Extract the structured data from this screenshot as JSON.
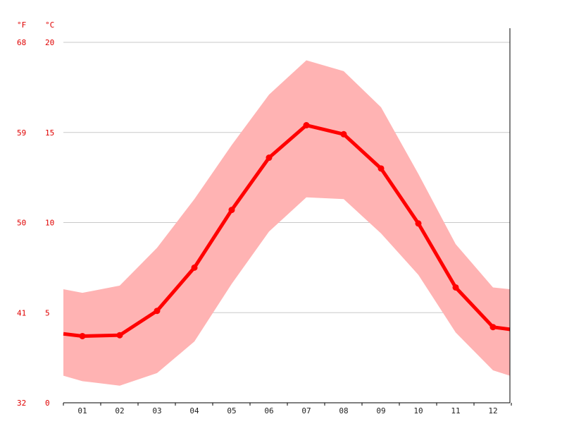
{
  "colors": {
    "line": "#ff0000",
    "band": "#ffb3b3",
    "axis_labels": "#e00000",
    "grid": "#c8c8c8",
    "axis": "#000000",
    "month_labels": "#222222"
  },
  "chart_data": {
    "type": "line",
    "units": {
      "fahrenheit": "°F",
      "celsius": "°C"
    },
    "categories": [
      "01",
      "02",
      "03",
      "04",
      "05",
      "06",
      "07",
      "08",
      "09",
      "10",
      "11",
      "12"
    ],
    "y_celsius_ticks": [
      "0",
      "5",
      "10",
      "15",
      "20"
    ],
    "y_fahrenheit_ticks": [
      "32",
      "41",
      "50",
      "59",
      "68"
    ],
    "ylim": [
      0,
      20
    ],
    "grid": true,
    "series": [
      {
        "values": [
          3.7,
          3.75,
          5.1,
          7.5,
          10.7,
          13.6,
          15.4,
          14.9,
          13.0,
          9.95,
          6.4,
          4.2
        ]
      }
    ],
    "band": {
      "max": [
        6.1,
        6.5,
        8.6,
        11.3,
        14.3,
        17.1,
        19.0,
        18.4,
        16.4,
        12.7,
        8.8,
        6.4
      ],
      "min": [
        1.2,
        0.95,
        1.65,
        3.4,
        6.6,
        9.5,
        11.4,
        11.3,
        9.4,
        7.1,
        3.9,
        1.8
      ],
      "edge_max": [
        6.3,
        6.3
      ],
      "edge_min": [
        1.5,
        1.5
      ]
    }
  }
}
